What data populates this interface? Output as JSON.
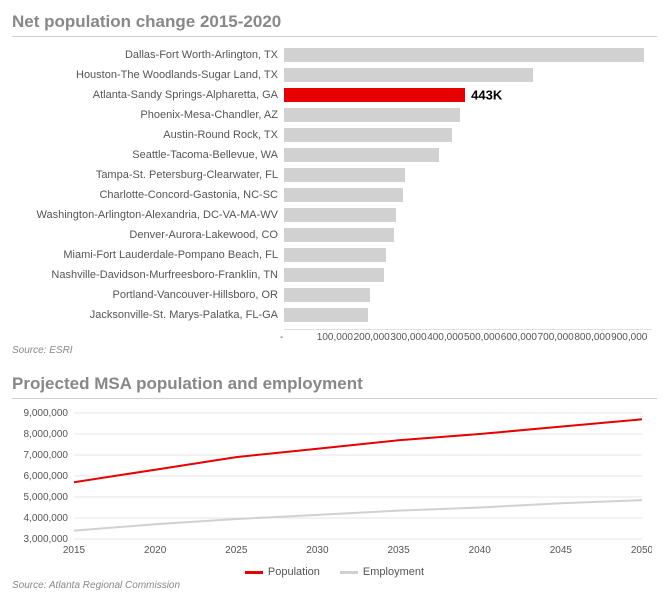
{
  "bar_chart": {
    "title": "Net population change 2015-2020",
    "source": "Source: ESRI",
    "x_max": 900000,
    "x_tick_step": 100000,
    "x_tick_labels": [
      "-",
      "100,000",
      "200,000",
      "300,000",
      "400,000",
      "500,000",
      "600,000",
      "700,000",
      "800,000",
      "900,000"
    ],
    "default_bar_color": "#d1d1d1",
    "highlight_bar_color": "#e60000",
    "label_fontsize": 11,
    "title_color": "#888888",
    "title_fontsize": 17,
    "bars": [
      {
        "label": "Dallas-Fort Worth-Arlington, TX",
        "value": 880000,
        "highlight": false
      },
      {
        "label": "Houston-The Woodlands-Sugar Land, TX",
        "value": 610000,
        "highlight": false
      },
      {
        "label": "Atlanta-Sandy Springs-Alpharetta, GA",
        "value": 443000,
        "highlight": true,
        "callout": "443K"
      },
      {
        "label": "Phoenix-Mesa-Chandler, AZ",
        "value": 430000,
        "highlight": false
      },
      {
        "label": "Austin-Round Rock, TX",
        "value": 410000,
        "highlight": false
      },
      {
        "label": "Seattle-Tacoma-Bellevue, WA",
        "value": 380000,
        "highlight": false
      },
      {
        "label": "Tampa-St. Petersburg-Clearwater, FL",
        "value": 295000,
        "highlight": false
      },
      {
        "label": "Charlotte-Concord-Gastonia, NC-SC",
        "value": 290000,
        "highlight": false
      },
      {
        "label": "Washington-Arlington-Alexandria, DC-VA-MA-WV",
        "value": 275000,
        "highlight": false
      },
      {
        "label": "Denver-Aurora-Lakewood, CO",
        "value": 270000,
        "highlight": false
      },
      {
        "label": "Miami-Fort Lauderdale-Pompano Beach, FL",
        "value": 250000,
        "highlight": false
      },
      {
        "label": "Nashville-Davidson-Murfreesboro-Franklin, TN",
        "value": 245000,
        "highlight": false
      },
      {
        "label": "Portland-Vancouver-Hillsboro, OR",
        "value": 210000,
        "highlight": false
      },
      {
        "label": "Jacksonville-St. Marys-Palatka, FL-GA",
        "value": 205000,
        "highlight": false
      }
    ]
  },
  "line_chart": {
    "title": "Projected MSA population and employment",
    "source": "Source: Atlanta Regional Commission",
    "x_min": 2015,
    "x_max": 2050,
    "x_tick_step": 5,
    "y_min": 3000000,
    "y_max": 9000000,
    "y_tick_step": 1000000,
    "y_tick_labels": [
      "3,000,000",
      "4,000,000",
      "5,000,000",
      "6,000,000",
      "7,000,000",
      "8,000,000",
      "9,000,000"
    ],
    "grid_color": "#e6e6e6",
    "background_color": "#ffffff",
    "axis_fontsize": 10,
    "title_color": "#888888",
    "title_fontsize": 17,
    "series": [
      {
        "name": "Population",
        "color": "#e60000",
        "line_width": 2,
        "points": [
          {
            "x": 2015,
            "y": 5700000
          },
          {
            "x": 2020,
            "y": 6300000
          },
          {
            "x": 2025,
            "y": 6900000
          },
          {
            "x": 2030,
            "y": 7300000
          },
          {
            "x": 2035,
            "y": 7700000
          },
          {
            "x": 2040,
            "y": 8000000
          },
          {
            "x": 2045,
            "y": 8350000
          },
          {
            "x": 2050,
            "y": 8700000
          }
        ]
      },
      {
        "name": "Employment",
        "color": "#d1d1d1",
        "line_width": 2,
        "points": [
          {
            "x": 2015,
            "y": 3400000
          },
          {
            "x": 2020,
            "y": 3700000
          },
          {
            "x": 2025,
            "y": 3950000
          },
          {
            "x": 2030,
            "y": 4150000
          },
          {
            "x": 2035,
            "y": 4350000
          },
          {
            "x": 2040,
            "y": 4500000
          },
          {
            "x": 2045,
            "y": 4700000
          },
          {
            "x": 2050,
            "y": 4850000
          }
        ]
      }
    ]
  }
}
